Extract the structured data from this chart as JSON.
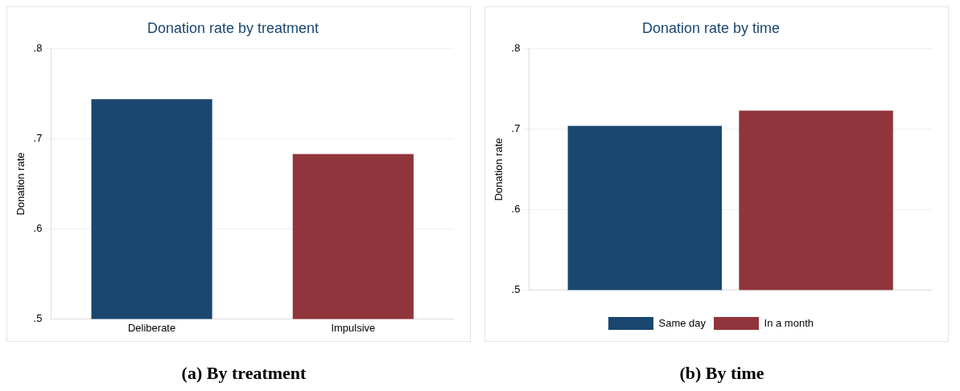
{
  "chart_data": [
    {
      "type": "bar",
      "title": "Donation rate by treatment",
      "ylabel": "Donation rate",
      "categories": [
        "Deliberate",
        "Impulsive"
      ],
      "values": [
        0.744,
        0.683
      ],
      "colors": [
        "#1a476f",
        "#90353b"
      ],
      "ylim": [
        0.5,
        0.8
      ],
      "yticks": [
        {
          "value": 0.5,
          "label": ".5"
        },
        {
          "value": 0.6,
          "label": ".6"
        },
        {
          "value": 0.7,
          "label": ".7"
        },
        {
          "value": 0.8,
          "label": ".8"
        }
      ],
      "grid": "y",
      "legend": false,
      "annotations": [
        "(a)  By treatment"
      ]
    },
    {
      "type": "bar",
      "title": "Donation rate by time",
      "ylabel": "Donation rate",
      "categories": [
        null
      ],
      "series": [
        {
          "name": "Same day",
          "color": "#1a476f",
          "values": [
            0.704
          ]
        },
        {
          "name": "In a month",
          "color": "#90353b",
          "values": [
            0.723
          ]
        }
      ],
      "ylim": [
        0.5,
        0.8
      ],
      "yticks": [
        {
          "value": 0.5,
          "label": ".5"
        },
        {
          "value": 0.6,
          "label": ".6"
        },
        {
          "value": 0.7,
          "label": ".7"
        },
        {
          "value": 0.8,
          "label": ".8"
        }
      ],
      "grid": "y",
      "legend": "bottom",
      "annotations": [
        "(b)  By time"
      ]
    }
  ]
}
